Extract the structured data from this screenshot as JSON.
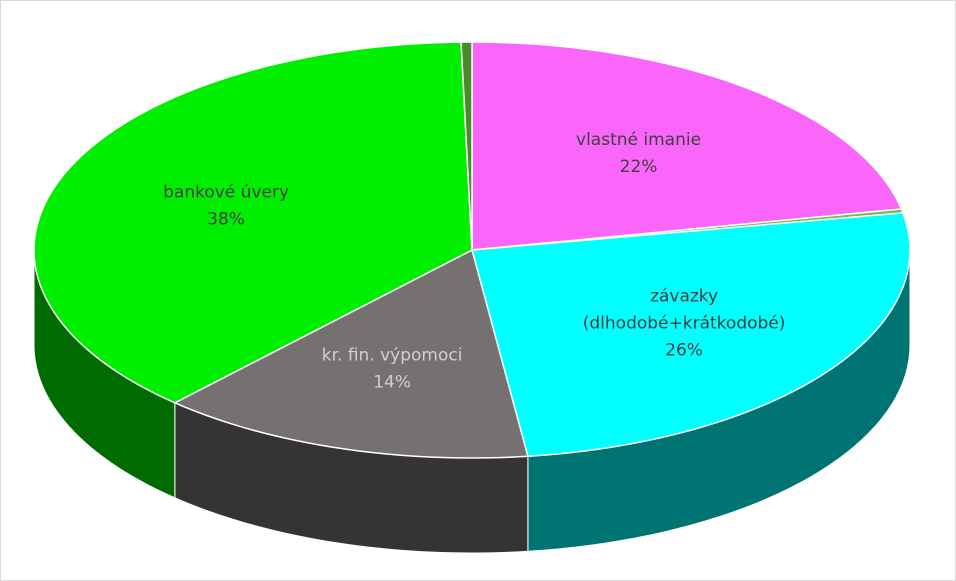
{
  "chart_data": {
    "type": "pie3d",
    "categories": [
      "vlastné imanie",
      null,
      "závazky (dlhodobé+krátkodobé)",
      "kr. fin. výpomoci",
      "bankové úvery",
      null
    ],
    "values": [
      22,
      0.3,
      26,
      14,
      38,
      0.4
    ],
    "value_labels": [
      "22%",
      null,
      "26%",
      "14%",
      "38%",
      null
    ],
    "colors": [
      "#f966f9",
      "#70c040",
      "#00ffff",
      "#767171",
      "#00ee00",
      "#4a8a2a"
    ],
    "label_colors": [
      "#404040",
      null,
      "#404040",
      "#d0cece",
      "#404040",
      null
    ]
  }
}
